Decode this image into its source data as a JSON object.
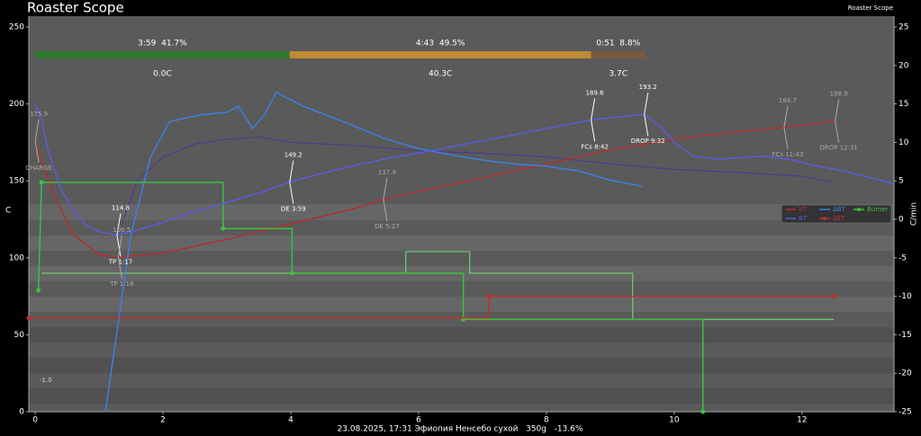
{
  "chart_data": {
    "type": "line",
    "title": "Roaster Scope",
    "app_name": "Roaster Scope",
    "caption": "23.08.2025, 17:31 Эфиопия Ненсебо сухой   350g   -13.6%",
    "ylabel": "C",
    "y2label": "C/min",
    "xlim": [
      -0.1,
      13.44
    ],
    "xticks": [
      0,
      2,
      4,
      6,
      8,
      10,
      12
    ],
    "ylim": [
      0,
      257
    ],
    "yticks": [
      0,
      50,
      100,
      150,
      200,
      250
    ],
    "y2lim": [
      -25,
      26.4
    ],
    "y2ticks": [
      -25,
      -20,
      -15,
      -10,
      -5,
      0,
      5,
      10,
      15,
      20,
      25
    ],
    "phases": [
      {
        "start": 0,
        "end": 3.983,
        "label": "3:59  41.7%",
        "delta": "0.0C",
        "color": "#2f7a2f"
      },
      {
        "start": 3.983,
        "end": 8.7,
        "label": "4:43  49.5%",
        "delta": "40.3C",
        "color": "#c08a35"
      },
      {
        "start": 8.7,
        "end": 9.55,
        "label": "0:51  8.8%",
        "delta": "3.7C",
        "color": "#7a5a3f"
      }
    ],
    "series": [
      {
        "name": "ET",
        "color": "#b03030",
        "axis": "y",
        "marker": false,
        "x": [
          0,
          0.3,
          0.6,
          1.0,
          1.3,
          2,
          3,
          4,
          5,
          5.45,
          6,
          7,
          8,
          9,
          10,
          11,
          11.72,
          12.52
        ],
        "values": [
          175,
          140,
          115,
          102,
          100.5,
          103,
          112,
          122,
          132,
          137.9,
          143,
          152,
          161,
          170,
          177,
          182,
          184.7,
          188.9
        ]
      },
      {
        "name": "ΔBT",
        "color": "#3d7fe0",
        "axis": "y2",
        "marker": false,
        "x": [
          1.1,
          1.5,
          1.8,
          2.1,
          2.6,
          3.0,
          3.18,
          3.4,
          3.6,
          3.77,
          4.2,
          5.0,
          5.5,
          6.0,
          6.5,
          7.0,
          7.5,
          8.0,
          8.5,
          9.0,
          9.5
        ],
        "values": [
          -25,
          -1.9,
          8,
          12.7,
          13.6,
          13.9,
          14.7,
          11.8,
          13.7,
          16.5,
          14.7,
          12.1,
          10.4,
          9.2,
          8.4,
          7.7,
          7.2,
          6.9,
          6.3,
          5.1,
          4.3
        ]
      },
      {
        "name": "Burner",
        "color": "#3fbf3f",
        "axis": "y",
        "marker": true,
        "x": [
          0.05,
          0.1,
          2.94,
          2.94,
          4.02,
          4.02,
          6.7,
          6.7,
          10.45,
          10.45
        ],
        "values": [
          79,
          149,
          149,
          119,
          119,
          90,
          90,
          60,
          60,
          0
        ]
      },
      {
        "name": "BT",
        "color": "#5b5bdc",
        "axis": "y",
        "marker": false,
        "x": [
          0,
          0.1,
          0.2,
          0.4,
          0.6,
          0.8,
          1.0,
          1.28,
          1.6,
          2.0,
          2.5,
          3.0,
          3.5,
          3.983,
          4.5,
          5,
          5.5,
          6,
          6.5,
          7,
          7.5,
          8,
          8.7,
          9.0,
          9.533,
          9.8,
          10.0,
          10.3,
          10.7,
          11.0,
          11.4,
          11.8,
          12.2,
          12.7,
          13.44
        ],
        "values": [
          200,
          190,
          170,
          145,
          130,
          121,
          117,
          114.8,
          118,
          123,
          130,
          136,
          142,
          149.2,
          155,
          160,
          164.5,
          168,
          172,
          176,
          180,
          184,
          189.6,
          191,
          193.2,
          185,
          175,
          166,
          164,
          165,
          166,
          164,
          160,
          156,
          148
        ]
      },
      {
        "name": "ΔET",
        "color": "#c03030",
        "axis": "y",
        "marker": true,
        "x": [
          -0.1,
          7.1,
          7.1,
          9.5,
          12.5
        ],
        "values": [
          61,
          61,
          75,
          75,
          75
        ]
      }
    ],
    "background_series": [
      {
        "color": "#4a3d8f",
        "axis": "y2",
        "x": [
          1.35,
          1.6,
          2.0,
          2.5,
          3.0,
          3.5,
          4.0,
          5.0,
          6.0,
          7.0,
          8.0,
          9.0,
          10,
          11,
          12,
          12.5
        ],
        "values": [
          -0.7,
          5.1,
          8.1,
          9.8,
          10.4,
          10.7,
          10,
          9.6,
          8.9,
          8.6,
          8.1,
          7.2,
          6.5,
          6.1,
          5.6,
          4.8
        ]
      },
      {
        "color": "#6fcf6f",
        "axis": "y",
        "x": [
          0.1,
          5.8,
          5.8,
          6.8,
          6.8,
          9.35,
          9.35,
          12.5
        ],
        "values": [
          90,
          90,
          104,
          104,
          90,
          90,
          60,
          60
        ]
      }
    ],
    "annotations": [
      {
        "time": 0,
        "value": 175.9,
        "event": "CHARGE",
        "background": true
      },
      {
        "time": 1.28,
        "value": 114.8,
        "event": "TP 1:17",
        "background": false
      },
      {
        "time": 1.3,
        "value": 100.5,
        "event": "TP 1:18",
        "background": true
      },
      {
        "time": 3.983,
        "value": 149.2,
        "event": "DE 3:59",
        "background": false
      },
      {
        "time": 5.45,
        "value": 137.9,
        "event": "DE 5:27",
        "background": true
      },
      {
        "time": 8.7,
        "value": 189.6,
        "event": "FCs 8:42",
        "background": false
      },
      {
        "time": 9.533,
        "value": 193.2,
        "event": "DROP 9:32",
        "background": false
      },
      {
        "time": 11.72,
        "value": 184.7,
        "event": "FCs 11:43",
        "background": true
      },
      {
        "time": 12.52,
        "value": 188.9,
        "event": "DROP 12:31",
        "background": true
      }
    ],
    "extra_labels": [
      "-1.0"
    ]
  }
}
